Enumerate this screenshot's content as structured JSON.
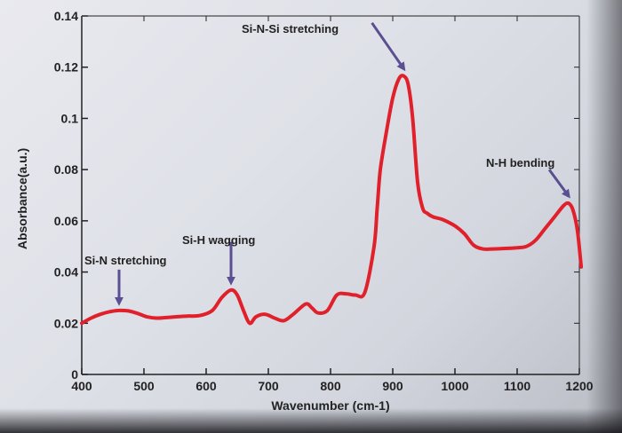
{
  "chart_data": {
    "type": "line",
    "xlabel": "Wavenumber (cm-1)",
    "ylabel": "Absorbance(a.u.)",
    "xlim": [
      400,
      1200
    ],
    "ylim": [
      0,
      0.14
    ],
    "x_ticks": [
      "400",
      "500",
      "600",
      "700",
      "800",
      "900",
      "1000",
      "1100",
      "1200"
    ],
    "y_ticks": [
      {
        "value": 0.14,
        "label": "0.14"
      },
      {
        "value": 0.12,
        "label": "0.12"
      },
      {
        "value": 0.1,
        "label": "0.1"
      },
      {
        "value": 0.08,
        "label": "0.08"
      },
      {
        "value": 0.06,
        "label": "0.06"
      },
      {
        "value": 0.04,
        "label": "0.04"
      },
      {
        "value": 0.02,
        "label": "0.02"
      },
      {
        "value": 0.0,
        "label": "0"
      }
    ],
    "grid": false,
    "line_color": "#e0202a",
    "arrow_color": "#5a4f93",
    "series": [
      {
        "x": [
          400,
          415,
          430,
          445,
          460,
          475,
          490,
          505,
          520,
          535,
          550,
          570,
          590,
          610,
          625,
          640,
          650,
          660,
          670,
          680,
          695,
          710,
          725,
          740,
          760,
          770,
          780,
          795,
          810,
          825,
          840,
          855,
          870,
          875,
          880,
          890,
          900,
          910,
          918,
          925,
          932,
          940,
          948,
          955,
          965,
          980,
          1000,
          1015,
          1030,
          1045,
          1060,
          1080,
          1100,
          1115,
          1130,
          1145,
          1160,
          1175,
          1183,
          1190,
          1197,
          1203
        ],
        "y": [
          0.02,
          0.022,
          0.0235,
          0.0245,
          0.025,
          0.0248,
          0.0238,
          0.0225,
          0.022,
          0.0222,
          0.0225,
          0.0228,
          0.023,
          0.025,
          0.03,
          0.033,
          0.031,
          0.025,
          0.02,
          0.0225,
          0.0235,
          0.022,
          0.021,
          0.0235,
          0.0275,
          0.026,
          0.024,
          0.025,
          0.031,
          0.0315,
          0.031,
          0.032,
          0.05,
          0.065,
          0.08,
          0.095,
          0.108,
          0.1155,
          0.1165,
          0.113,
          0.1,
          0.075,
          0.065,
          0.063,
          0.0615,
          0.0605,
          0.058,
          0.055,
          0.0505,
          0.049,
          0.049,
          0.0492,
          0.0495,
          0.05,
          0.0525,
          0.057,
          0.0615,
          0.066,
          0.0668,
          0.064,
          0.056,
          0.042
        ]
      }
    ],
    "annotations": [
      {
        "label": "Si-N stretching",
        "x": 460,
        "y": 0.025
      },
      {
        "label": "Si-H wagging",
        "x": 640,
        "y": 0.033
      },
      {
        "label": "Si-N-Si stretching",
        "x": 918,
        "y": 0.1165
      },
      {
        "label": "N-H bending",
        "x": 1183,
        "y": 0.0668
      }
    ]
  }
}
